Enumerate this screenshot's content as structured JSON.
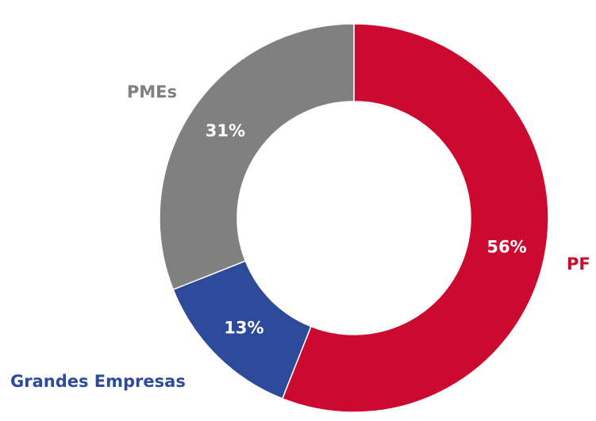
{
  "chart_data": {
    "type": "pie",
    "variant": "donut",
    "slices": [
      {
        "label": "PF",
        "value": 56,
        "value_label": "56%",
        "color": "#cc0a30"
      },
      {
        "label": "Grandes Empresas",
        "value": 13,
        "value_label": "13%",
        "color": "#2e4a9b"
      },
      {
        "label": "PMEs",
        "value": 31,
        "value_label": "31%",
        "color": "#808080"
      }
    ]
  }
}
